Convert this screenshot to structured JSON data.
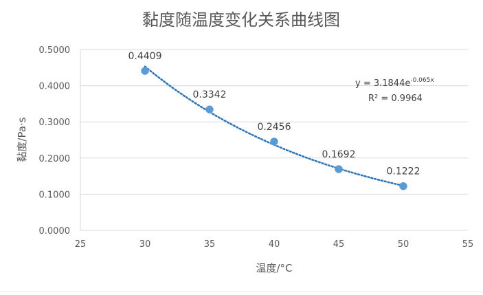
{
  "chart_data": {
    "type": "scatter",
    "title": "黏度随温度变化关系曲线图",
    "xlabel": "温度/°C",
    "ylabel": "黏度/Pa·s",
    "xlim": [
      25,
      55
    ],
    "ylim": [
      0,
      0.5
    ],
    "x_ticks": [
      "25",
      "30",
      "35",
      "40",
      "45",
      "50",
      "55"
    ],
    "y_ticks": [
      "0.0000",
      "0.1000",
      "0.2000",
      "0.3000",
      "0.4000",
      "0.5000"
    ],
    "grid": true,
    "legend": "none",
    "series": [
      {
        "x": [
          30,
          35,
          40,
          45,
          50
        ],
        "values": [
          0.4409,
          0.3342,
          0.2456,
          0.1692,
          0.1222
        ],
        "labels": [
          "0.4409",
          "0.3342",
          "0.2456",
          "0.1692",
          "0.1222"
        ],
        "color": "#5b9bd5"
      }
    ],
    "trendline": {
      "type": "exponential",
      "a": 3.1844,
      "b": -0.065,
      "color": "#2e75b6",
      "equation_prefix": "y = 3.1844e",
      "equation_exponent": "-0.065x",
      "r2_label": "R² = 0.9964"
    }
  }
}
